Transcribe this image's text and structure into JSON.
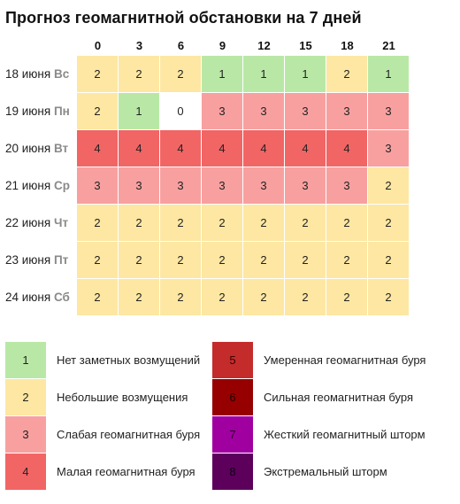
{
  "title": "Прогноз геомагнитной обстановки на 7 дней",
  "hours": [
    "0",
    "3",
    "6",
    "9",
    "12",
    "15",
    "18",
    "21"
  ],
  "rows": [
    {
      "date": "18 июня",
      "dow": "Вс",
      "values": [
        2,
        2,
        2,
        1,
        1,
        1,
        2,
        1
      ]
    },
    {
      "date": "19 июня",
      "dow": "Пн",
      "values": [
        2,
        1,
        0,
        3,
        3,
        3,
        3,
        3
      ]
    },
    {
      "date": "20 июня",
      "dow": "Вт",
      "values": [
        4,
        4,
        4,
        4,
        4,
        4,
        4,
        3
      ]
    },
    {
      "date": "21 июня",
      "dow": "Ср",
      "values": [
        3,
        3,
        3,
        3,
        3,
        3,
        3,
        2
      ]
    },
    {
      "date": "22 июня",
      "dow": "Чт",
      "values": [
        2,
        2,
        2,
        2,
        2,
        2,
        2,
        2
      ]
    },
    {
      "date": "23 июня",
      "dow": "Пт",
      "values": [
        2,
        2,
        2,
        2,
        2,
        2,
        2,
        2
      ]
    },
    {
      "date": "24 июня",
      "dow": "Сб",
      "values": [
        2,
        2,
        2,
        2,
        2,
        2,
        2,
        2
      ]
    }
  ],
  "level_colors": {
    "0": "#ffffff",
    "1": "#b9e8a6",
    "2": "#fde7a2",
    "3": "#f8a0a0",
    "4": "#f26565",
    "5": "#c42b2b",
    "6": "#960000",
    "7": "#a100a1",
    "8": "#5c005c"
  },
  "legend": [
    {
      "level": "1",
      "text": "Нет заметных возмущений"
    },
    {
      "level": "2",
      "text": "Небольшие возмущения"
    },
    {
      "level": "3",
      "text": "Слабая геомагнитная буря"
    },
    {
      "level": "4",
      "text": "Малая геомагнитная буря"
    },
    {
      "level": "5",
      "text": "Умеренная геомагнитная буря"
    },
    {
      "level": "6",
      "text": "Сильная геомагнитная буря"
    },
    {
      "level": "7",
      "text": "Жесткий геомагнитный шторм"
    },
    {
      "level": "8",
      "text": "Экстремальный шторм"
    }
  ]
}
